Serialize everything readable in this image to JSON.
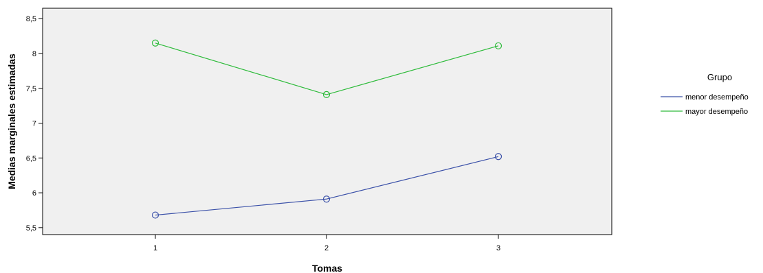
{
  "chart_data": {
    "type": "line",
    "xlabel": "Tomas",
    "ylabel": "Medias marginales estimadas",
    "categories": [
      "1",
      "2",
      "3"
    ],
    "ylim": [
      5.4,
      8.65
    ],
    "yticks": [
      5.5,
      6,
      6.5,
      7,
      7.5,
      8,
      8.5
    ],
    "ytick_labels": [
      "5,5",
      "6",
      "6,5",
      "7",
      "7,5",
      "8",
      "8,5"
    ],
    "grid": false,
    "legend": {
      "title": "Grupo",
      "placement": "right"
    },
    "series": [
      {
        "name": "menor desempeño",
        "color": "#3a50a8",
        "values": [
          5.68,
          5.91,
          6.52
        ]
      },
      {
        "name": "mayor desempeño",
        "color": "#2dbb3a",
        "values": [
          8.15,
          7.41,
          8.11
        ]
      }
    ],
    "plot_background": "#f0f0f0"
  }
}
